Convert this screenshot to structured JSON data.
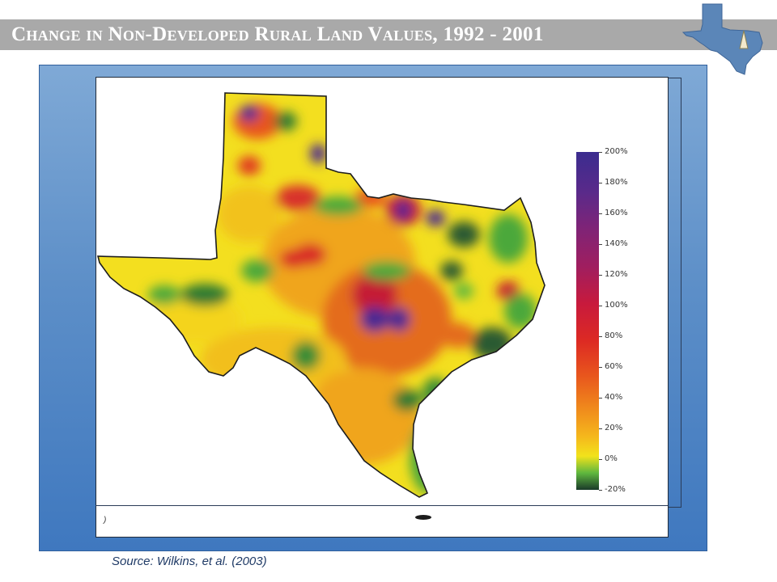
{
  "header": {
    "title": "Change in Non-Developed Rural Land Values, 1992 - 2001"
  },
  "map": {
    "legend": {
      "ticks": [
        "200%",
        "180%",
        "160%",
        "140%",
        "120%",
        "100%",
        "80%",
        "60%",
        "40%",
        "20%",
        "0%",
        "-20%"
      ],
      "colors": [
        "#3b2c8f",
        "#5a2a8a",
        "#7d2478",
        "#a01e5f",
        "#c81a3c",
        "#dd2a23",
        "#e8551d",
        "#f08a1c",
        "#f5b61c",
        "#f2e21b",
        "#5fb83e",
        "#1a3a2a"
      ]
    },
    "small_mark": ")"
  },
  "footer": {
    "source": "Source: Wilkins, et al. (2003)"
  }
}
